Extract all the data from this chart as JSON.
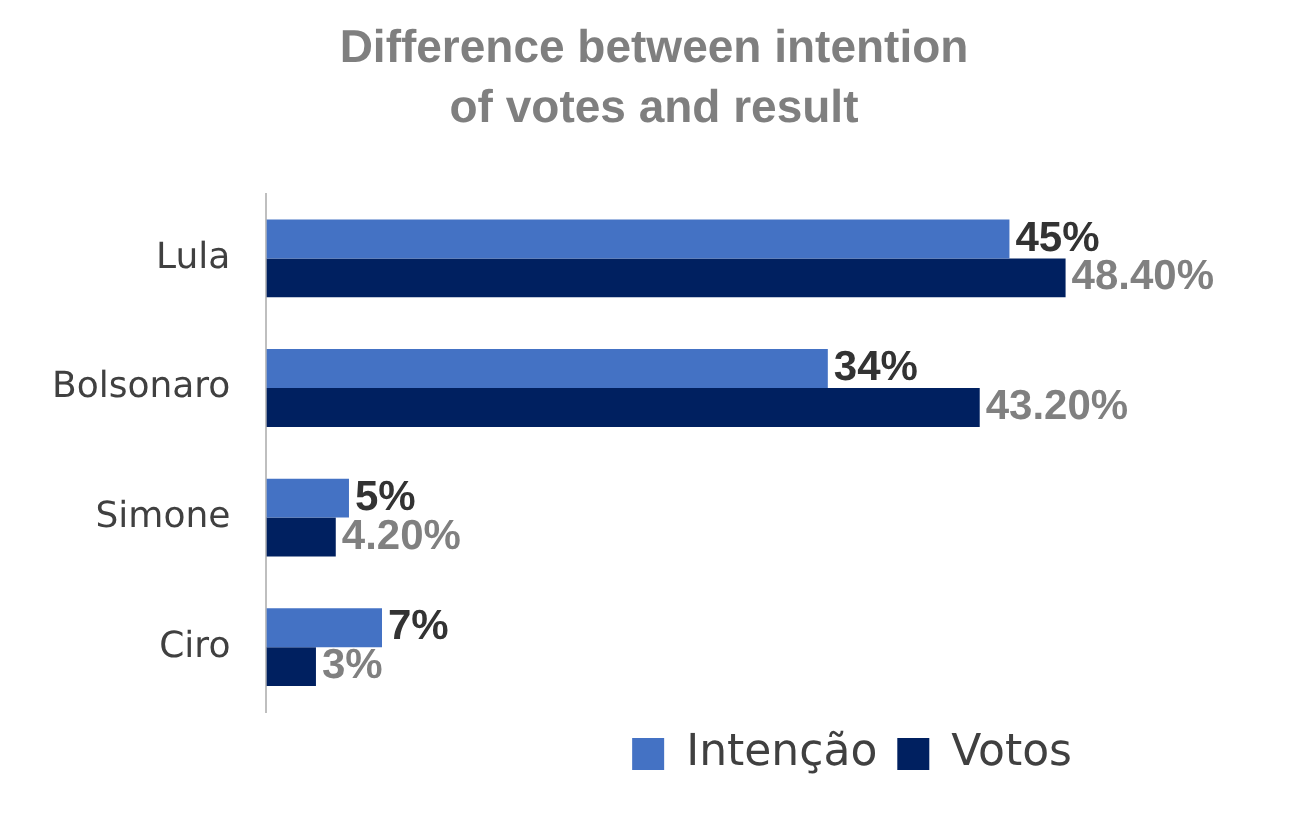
{
  "chart_data": {
    "type": "bar",
    "title": "Difference between intention of votes and result",
    "orientation": "horizontal",
    "categories": [
      "Lula",
      "Bolsonaro",
      "Simone",
      "Ciro"
    ],
    "series": [
      {
        "name": "Intenção",
        "color": "#4472c4",
        "values": [
          45,
          34,
          5,
          7
        ],
        "value_labels": [
          "45%",
          "34%",
          "5%",
          "7%"
        ]
      },
      {
        "name": "Votos",
        "color": "#002060",
        "values": [
          48.4,
          43.2,
          4.2,
          3
        ],
        "value_labels": [
          "48.40%",
          "43.20%",
          "4.20%",
          "3%"
        ]
      }
    ],
    "legend": "bottom right",
    "grid": false
  }
}
